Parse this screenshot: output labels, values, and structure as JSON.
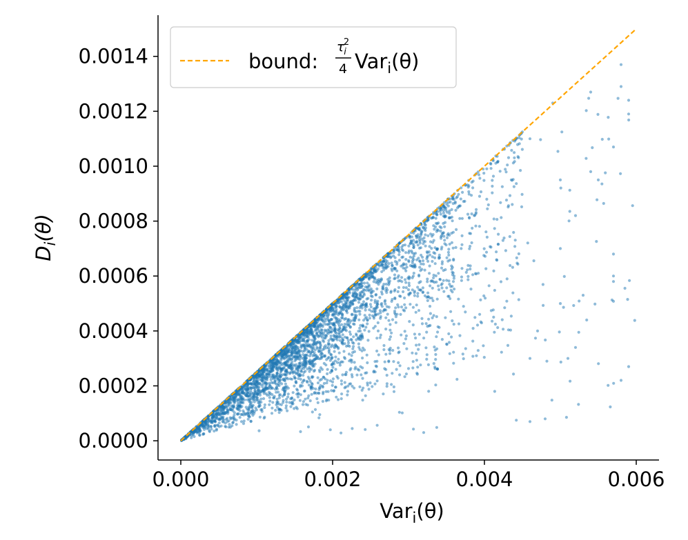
{
  "chart_data": {
    "type": "scatter",
    "title": "",
    "xlabel": "Var_i(θ)",
    "ylabel": "D_i(θ)",
    "xlim": [
      -0.0003,
      0.0063
    ],
    "ylim": [
      -7e-05,
      0.00155
    ],
    "x_ticks": [
      0.0,
      0.002,
      0.004,
      0.006
    ],
    "x_tick_labels": [
      "0.000",
      "0.002",
      "0.004",
      "0.006"
    ],
    "y_ticks": [
      0.0,
      0.0002,
      0.0004,
      0.0006,
      0.0008,
      0.001,
      0.0012,
      0.0014
    ],
    "y_tick_labels": [
      "0.0000",
      "0.0002",
      "0.0004",
      "0.0006",
      "0.0008",
      "0.0010",
      "0.0012",
      "0.0014"
    ],
    "grid": false,
    "legend_position": "upper-left",
    "series": [
      {
        "name": "bound: τ_i²/4 Var_i(θ)",
        "kind": "line",
        "style": "dashed",
        "color": "#FFA500",
        "x": [
          0.0,
          0.006
        ],
        "y": [
          0.0,
          0.0015
        ]
      },
      {
        "kind": "scatter",
        "color": "#1f77b4",
        "approx_point_count": 3600,
        "points": [
          [
            0.0032,
            3e-05
          ],
          [
            0.0046,
            7e-05
          ],
          [
            0.0048,
            8e-05
          ],
          [
            0.0058,
            0.00022
          ],
          [
            0.0059,
            0.00027
          ],
          [
            0.0051,
            0.0003
          ],
          [
            0.0052,
            0.00034
          ],
          [
            0.0046,
            0.0003
          ],
          [
            0.0047,
            0.0004
          ],
          [
            0.005,
            0.0005
          ],
          [
            0.0053,
            0.00053
          ],
          [
            0.0057,
            0.00058
          ],
          [
            0.0057,
            0.0006
          ],
          [
            0.0057,
            0.00068
          ],
          [
            0.005,
            0.0007
          ],
          [
            0.0052,
            0.00082
          ],
          [
            0.005,
            0.00095
          ],
          [
            0.0055,
            0.00095
          ],
          [
            0.0054,
            0.00098
          ],
          [
            0.0057,
            0.00107
          ],
          [
            0.0059,
            0.00119
          ],
          [
            0.0059,
            0.00124
          ],
          [
            0.0058,
            0.00129
          ],
          [
            0.0058,
            0.00137
          ],
          [
            0.0054,
            0.00127
          ],
          [
            0.0049,
            0.00123
          ],
          [
            0.0046,
            0.0011
          ],
          [
            0.0036,
            0.0006
          ],
          [
            0.003,
            0.00055
          ],
          [
            0.0026,
            0.0004
          ],
          [
            0.002,
            0.00028
          ],
          [
            0.0016,
            0.0002
          ],
          [
            0.0012,
            0.0001
          ],
          [
            0.0008,
            7e-05
          ],
          [
            0.0022,
            0.00018
          ]
        ]
      }
    ]
  }
}
